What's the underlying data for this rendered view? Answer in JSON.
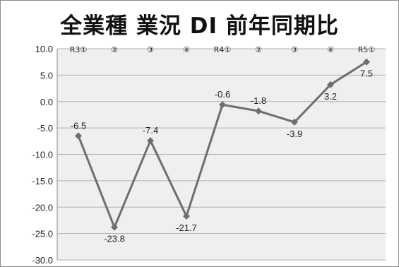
{
  "chart_data": {
    "type": "line",
    "title": "全業種 業況 DI 前年同期比",
    "xlabel": "",
    "ylabel": "",
    "categories": [
      "R3①",
      "②",
      "③",
      "④",
      "R4①",
      "②",
      "③",
      "④",
      "R5①"
    ],
    "values": [
      -6.5,
      -23.8,
      -7.4,
      -21.7,
      -0.6,
      -1.8,
      -3.9,
      3.2,
      7.5
    ],
    "data_labels": [
      "-6.5",
      "-23.8",
      "-7.4",
      "-21.7",
      "-0.6",
      "-1.8",
      "-3.9",
      "3.2",
      "7.5"
    ],
    "y_ticks": [
      "10.0",
      "5.0",
      "0.0",
      "-5.0",
      "-10.0",
      "-15.0",
      "-20.0",
      "-25.0",
      "-30.0"
    ],
    "ylim": [
      -30,
      10
    ],
    "grid": true,
    "legend": "none",
    "line_color": "#6e6e6e",
    "marker": "diamond",
    "plot_background": "#efefef",
    "gridline_color": "#b0b0b0"
  }
}
